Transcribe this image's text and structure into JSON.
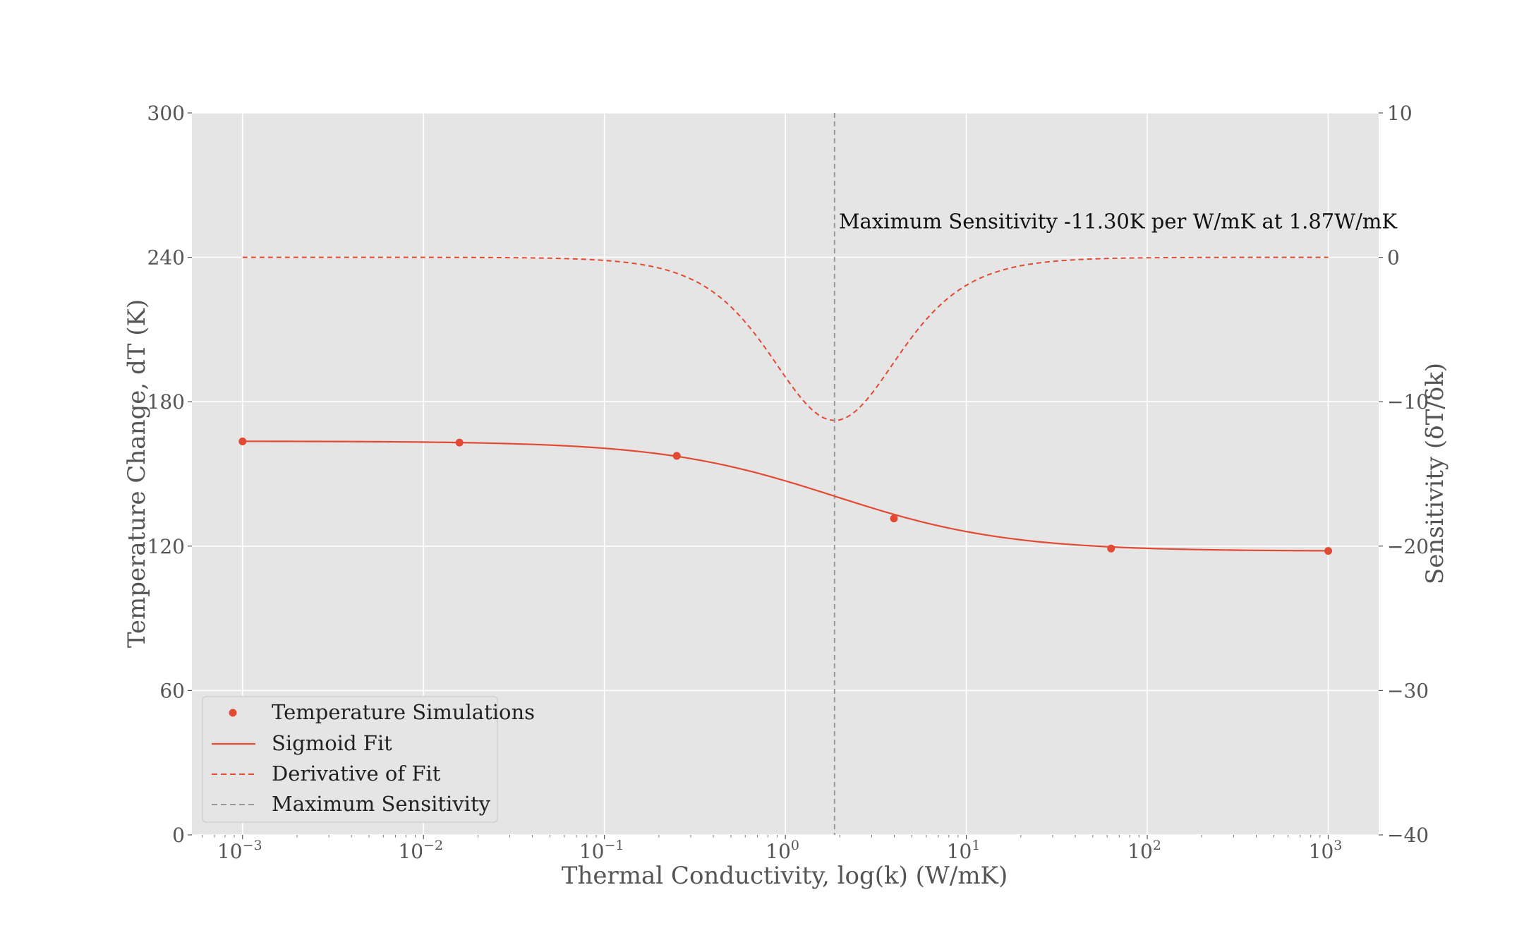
{
  "chart_data": {
    "type": "line",
    "title": "",
    "xlabel": "Thermal Conductivity, log(k) (W/mK)",
    "ylabel": "Temperature Change, dT (K)",
    "ylabel_right": "Sensitivity (δT/δk)",
    "xscale": "log",
    "xlim": [
      0.000525,
      1900
    ],
    "ylim": [
      0,
      300
    ],
    "ylim_right": [
      -40,
      10
    ],
    "grid": true,
    "background": "#e5e5e5",
    "x_ticks": [
      {
        "value": 0.001,
        "base": "10",
        "exp": "−3"
      },
      {
        "value": 0.01,
        "base": "10",
        "exp": "−2"
      },
      {
        "value": 0.1,
        "base": "10",
        "exp": "−1"
      },
      {
        "value": 1,
        "base": "10",
        "exp": "0"
      },
      {
        "value": 10,
        "base": "10",
        "exp": "1"
      },
      {
        "value": 100,
        "base": "10",
        "exp": "2"
      },
      {
        "value": 1000,
        "base": "10",
        "exp": "3"
      }
    ],
    "y_ticks": [
      "0",
      "60",
      "120",
      "180",
      "240",
      "300"
    ],
    "y_ticks_right": [
      "−40",
      "−30",
      "−20",
      "−10",
      "0",
      "10"
    ],
    "series": [
      {
        "name": "Temperature Simulations",
        "kind": "scatter",
        "axis": "left",
        "color": "#e24a33",
        "x": [
          0.001,
          0.0158,
          0.251,
          3.98,
          63.1,
          1000
        ],
        "y": [
          163.5,
          163.0,
          157.5,
          131.5,
          119.0,
          118.0
        ]
      },
      {
        "name": "Sigmoid Fit",
        "kind": "line",
        "style": "solid",
        "axis": "left",
        "color": "#e24a33",
        "model": {
          "lower": 117.9,
          "upper": 163.6,
          "log10_midpoint": 0.272,
          "slope": 2.1
        }
      },
      {
        "name": "Derivative of Fit",
        "kind": "line",
        "style": "dashed",
        "axis": "right",
        "color": "#e24a33",
        "model": {
          "peak": -11.3,
          "log10_center": 0.272,
          "slope": 2.1
        }
      },
      {
        "name": "Maximum Sensitivity",
        "kind": "vline",
        "style": "dashed",
        "color": "#999999",
        "x": 1.87
      }
    ],
    "annotation": {
      "text": "Maximum Sensitivity -11.30K per W/mK at 1.87W/mK",
      "x": 1.87,
      "y_right": 2
    },
    "legend": {
      "placement": "lower-left",
      "entries": [
        "Temperature Simulations",
        "Sigmoid Fit",
        "Derivative of Fit",
        "Maximum Sensitivity"
      ]
    }
  }
}
